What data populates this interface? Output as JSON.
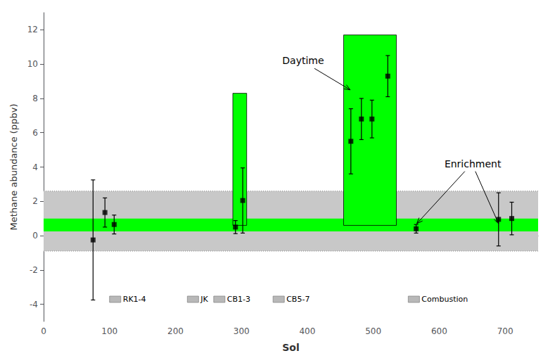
{
  "chart_data": {
    "type": "scatter",
    "xlabel": "Sol",
    "ylabel": "Methane abundance (ppbv)",
    "xlim": [
      0,
      750
    ],
    "ylim": [
      -5,
      13
    ],
    "xticks": [
      0,
      100,
      200,
      300,
      400,
      500,
      600,
      700
    ],
    "yticks": [
      -4,
      -2,
      0,
      2,
      4,
      6,
      8,
      10,
      12
    ],
    "grid": false,
    "marker": "square",
    "color": "#000000",
    "x": [
      75,
      93,
      107,
      291,
      302,
      466,
      482,
      498,
      522,
      565,
      690,
      710
    ],
    "values": [
      -0.25,
      1.35,
      0.65,
      0.5,
      2.05,
      5.5,
      6.8,
      6.8,
      9.3,
      0.4,
      0.95,
      1.0
    ],
    "yerr_low": [
      3.5,
      0.85,
      0.55,
      0.38,
      1.9,
      1.9,
      1.2,
      1.1,
      1.2,
      0.25,
      1.55,
      0.95
    ],
    "yerr_high": [
      3.5,
      0.85,
      0.55,
      0.38,
      1.9,
      1.9,
      1.2,
      1.1,
      1.2,
      0.25,
      1.55,
      0.95
    ],
    "bands": [
      {
        "y1": -0.9,
        "y2": 2.6,
        "color": "#c8c8c8"
      },
      {
        "y1": 0.25,
        "y2": 1.0,
        "color": "#00ff00"
      }
    ],
    "bars": [
      {
        "x1": 287,
        "x2": 308,
        "y1": 0.6,
        "y2": 8.3,
        "color": "#00ff00"
      },
      {
        "x1": 455,
        "x2": 535,
        "y1": 0.6,
        "y2": 11.7,
        "color": "#00ff00"
      }
    ],
    "markers": [
      {
        "label": "RK1-4",
        "x": 100
      },
      {
        "label": "JK",
        "x": 218
      },
      {
        "label": "CB1-3",
        "x": 258
      },
      {
        "label": "CB5-7",
        "x": 348
      },
      {
        "label": "Combustion",
        "x": 553
      }
    ],
    "annotations": [
      {
        "text": "Daytime",
        "x": 362,
        "y": 10.2,
        "arrows": [
          [
            465,
            8.5
          ]
        ]
      },
      {
        "text": "Enrichment",
        "x": 608,
        "y": 4.2,
        "arrows": [
          [
            566,
            0.7
          ],
          [
            690,
            0.7
          ]
        ]
      }
    ]
  }
}
